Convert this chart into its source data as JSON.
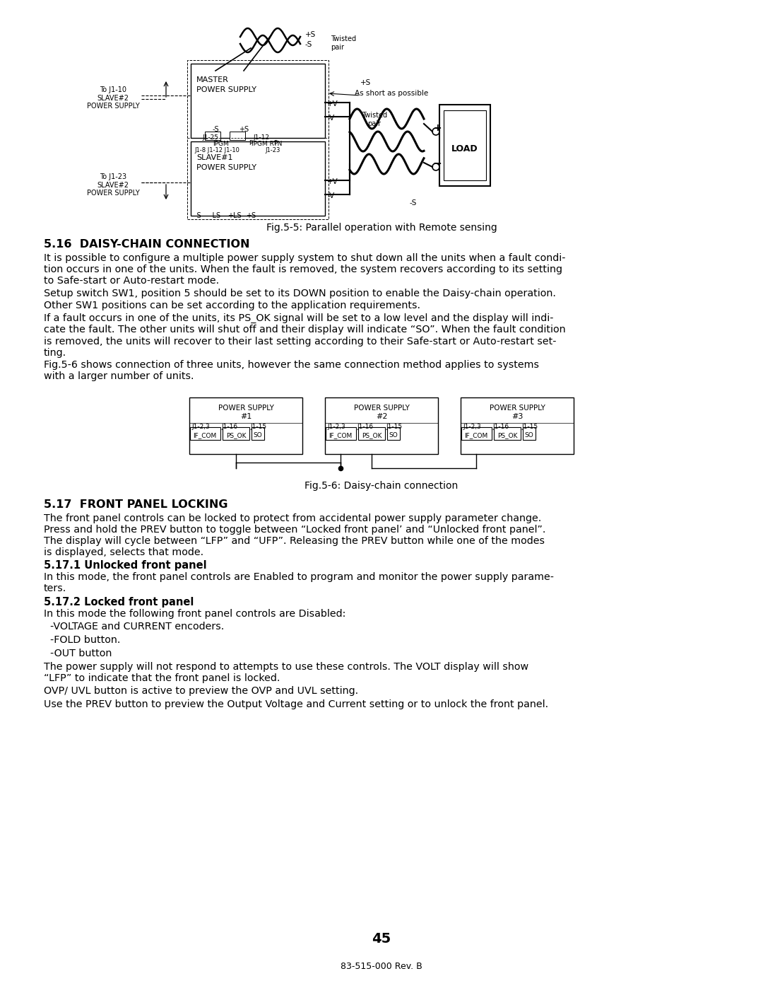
{
  "bg_color": "#ffffff",
  "text_color": "#000000",
  "page_number": "45",
  "footer": "83-515-000 Rev. B",
  "fig55_caption": "Fig.5-5: Parallel operation with Remote sensing",
  "fig56_caption": "Fig.5-6: Daisy-chain connection",
  "section_516_title": "5.16  DAISY-CHAIN CONNECTION",
  "section_516_para1": "It is possible to configure a multiple power supply system to shut down all the units when a fault condi-\ntion occurs in one of the units. When the fault is removed, the system recovers according to its setting\nto Safe-start or Auto-restart mode.",
  "section_516_para2": "Setup switch SW1, position 5 should be set to its DOWN position to enable the Daisy-chain operation.\nOther SW1 positions can be set according to the application requirements.",
  "section_516_para3": "If a fault occurs in one of the units, its PS_OK signal will be set to a low level and the display will indi-\ncate the fault. The other units will shut off and their display will indicate “SO”. When the fault condition\nis removed, the units will recover to their last setting according to their Safe-start or Auto-restart set-\nting.",
  "section_516_para4": "Fig.5-6 shows connection of three units, however the same connection method applies to systems\nwith a larger number of units.",
  "section_517_title": "5.17  FRONT PANEL LOCKING",
  "section_517_body": "The front panel controls can be locked to protect from accidental power supply parameter change.\nPress and hold the PREV button to toggle between “Locked front panel’ and “Unlocked front panel”.\nThe display will cycle between “LFP” and “UFP”. Releasing the PREV button while one of the modes\nis displayed, selects that mode.",
  "section_5171_title": "5.17.1 Unlocked front panel",
  "section_5171_body": "In this mode, the front panel controls are Enabled to program and monitor the power supply parame-\nters.",
  "section_5172_title": "5.17.2 Locked front panel",
  "section_5172_line1": "In this mode the following front panel controls are Disabled:",
  "section_5172_line2": "  -VOLTAGE and CURRENT encoders.",
  "section_5172_line3": "  -FOLD button.",
  "section_5172_line4": "  -OUT button",
  "section_5172_para1": "The power supply will not respond to attempts to use these controls. The VOLT display will show\n“LFP” to indicate that the front panel is locked.",
  "section_5172_para2": "OVP/ UVL button is active to preview the OVP and UVL setting.",
  "section_5172_para3": "Use the PREV button to preview the Output Voltage and Current setting or to unlock the front panel."
}
